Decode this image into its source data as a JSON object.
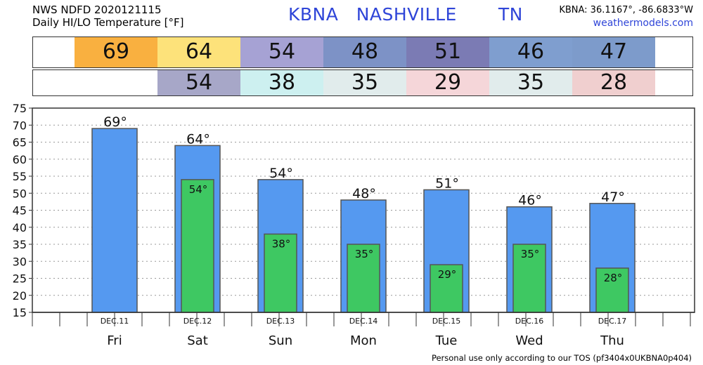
{
  "header": {
    "line1": "NWS NDFD 2020121115",
    "line2": "Daily HI/LO Temperature [°F]",
    "station_title": "KBNA   NASHVILLE       TN",
    "coords": "KBNA: 36.1167°, -86.6833°W",
    "site": "weathermodels.com"
  },
  "hi_strip": [
    {
      "value": "69",
      "color": "#f9b040"
    },
    {
      "value": "64",
      "color": "#fde27a"
    },
    {
      "value": "54",
      "color": "#a6a2d4"
    },
    {
      "value": "48",
      "color": "#7d92c6"
    },
    {
      "value": "51",
      "color": "#7b7bb4"
    },
    {
      "value": "46",
      "color": "#7f9ecf"
    },
    {
      "value": "47",
      "color": "#7d9bcb"
    }
  ],
  "lo_strip": [
    {
      "value": "",
      "color": "#ffffff"
    },
    {
      "value": "54",
      "color": "#a7a7c8"
    },
    {
      "value": "38",
      "color": "#cdf0f0"
    },
    {
      "value": "35",
      "color": "#e1ecec"
    },
    {
      "value": "29",
      "color": "#f5d6d9"
    },
    {
      "value": "35",
      "color": "#e1ecec"
    },
    {
      "value": "28",
      "color": "#f0cfcf"
    }
  ],
  "chart_data": {
    "type": "bar",
    "categories": [
      "Fri",
      "Sat",
      "Sun",
      "Mon",
      "Tue",
      "Wed",
      "Thu"
    ],
    "dates": [
      "DEC.11",
      "DEC.12",
      "DEC.13",
      "DEC.14",
      "DEC.15",
      "DEC.16",
      "DEC.17"
    ],
    "series": [
      {
        "values": [
          69,
          64,
          54,
          48,
          51,
          46,
          47
        ],
        "color": "#5599f0"
      },
      {
        "values": [
          null,
          54,
          38,
          35,
          29,
          35,
          28
        ],
        "color": "#3ec862"
      }
    ],
    "hi_labels": [
      "69°",
      "64°",
      "54°",
      "48°",
      "51°",
      "46°",
      "47°"
    ],
    "lo_labels": [
      "",
      "54°",
      "38°",
      "35°",
      "29°",
      "35°",
      "28°"
    ],
    "yticks": [
      "15",
      "20",
      "25",
      "30",
      "35",
      "40",
      "45",
      "50",
      "55",
      "60",
      "65",
      "70",
      "75"
    ],
    "ylim": [
      15,
      75
    ],
    "grid": true,
    "xlabel": "",
    "ylabel": ""
  },
  "footer": "Personal use only according to our TOS (pf3404x0UKBNA0p404)"
}
